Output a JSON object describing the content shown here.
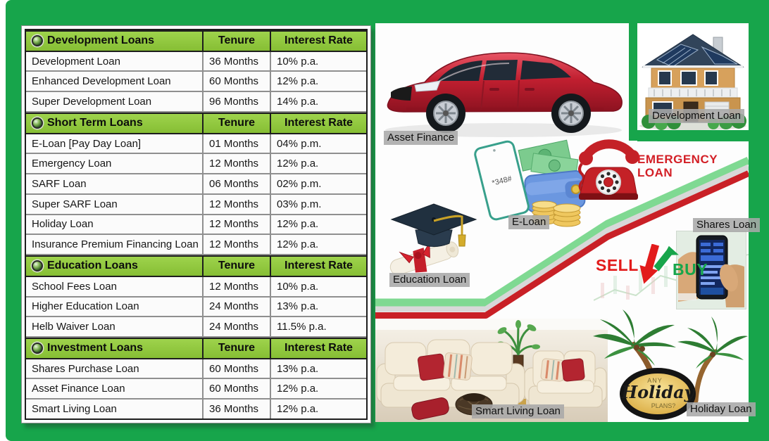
{
  "table": {
    "columns": [
      "Tenure",
      "Interest Rate"
    ],
    "sections": [
      {
        "title": "Development Loans",
        "rows": [
          {
            "name": "Development Loan",
            "tenure": "36 Months",
            "rate": "10% p.a."
          },
          {
            "name": "Enhanced Development Loan",
            "tenure": "60 Months",
            "rate": "12% p.a."
          },
          {
            "name": "Super Development Loan",
            "tenure": "96 Months",
            "rate": "14% p.a."
          }
        ]
      },
      {
        "title": "Short Term Loans",
        "rows": [
          {
            "name": "E-Loan [Pay Day Loan]",
            "tenure": "01 Months",
            "rate": "04% p.m."
          },
          {
            "name": "Emergency Loan",
            "tenure": "12 Months",
            "rate": "12% p.a."
          },
          {
            "name": "SARF Loan",
            "tenure": "06 Months",
            "rate": "02% p.m."
          },
          {
            "name": "Super SARF Loan",
            "tenure": "12 Months",
            "rate": "03% p.m."
          },
          {
            "name": "Holiday Loan",
            "tenure": "12 Months",
            "rate": "12% p.a."
          },
          {
            "name": "Insurance Premium Financing Loan",
            "tenure": "12 Months",
            "rate": "12% p.a."
          }
        ]
      },
      {
        "title": "Education Loans",
        "rows": [
          {
            "name": "School Fees Loan",
            "tenure": "12 Months",
            "rate": "10% p.a."
          },
          {
            "name": "Higher Education Loan",
            "tenure": "24 Months",
            "rate": "13% p.a."
          },
          {
            "name": "Helb Waiver Loan",
            "tenure": "24 Months",
            "rate": "11.5% p.a."
          }
        ]
      },
      {
        "title": "Investment Loans",
        "rows": [
          {
            "name": "Shares Purchase Loan",
            "tenure": "60 Months",
            "rate": "13% p.a."
          },
          {
            "name": "Asset Finance Loan",
            "tenure": "60 Months",
            "rate": "12% p.a."
          },
          {
            "name": "Smart Living Loan",
            "tenure": "36 Months",
            "rate": "12% p.a."
          }
        ]
      }
    ]
  },
  "collage": {
    "asset_finance_label": "Asset Finance",
    "development_label": "Development Loan",
    "eloan_label": "E-Loan",
    "eloan_phone_screen": "*348#",
    "emergency_line1": "EMERGENCY",
    "emergency_line2": "LOAN",
    "education_label": "Education Loan",
    "shares_label": "Shares Loan",
    "sell_text": "SELL",
    "buy_text": "BUY",
    "smart_living_label": "Smart Living Loan",
    "holiday_label": "Holiday Loan",
    "holiday_badge": {
      "top": "ANY",
      "middle": "Holiday",
      "bottom": "PLANS?"
    }
  },
  "colors": {
    "background_green": "#17A54B",
    "table_header_green": "#8FC93E",
    "ribbon_green": "#7FD992",
    "ribbon_gray": "#D8D8D8",
    "ribbon_red": "#C92026",
    "emergency_red": "#D31F26",
    "sell_red": "#E21B1B",
    "buy_green": "#17A54B",
    "car_red": "#C11F30"
  }
}
